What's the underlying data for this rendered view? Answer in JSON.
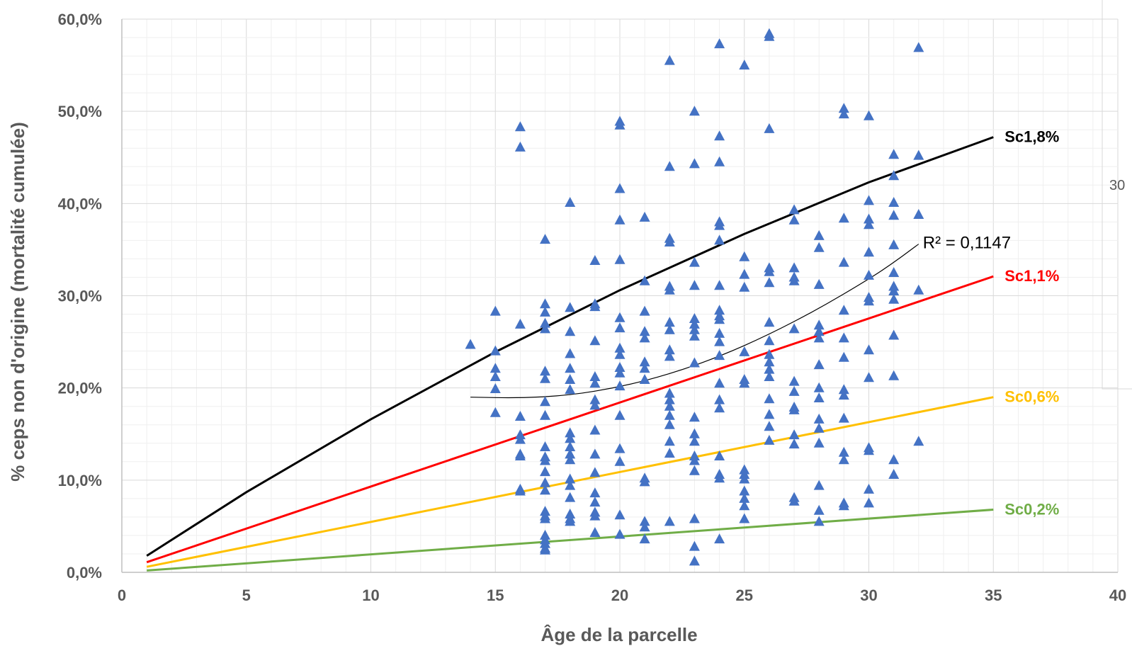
{
  "chart_data": {
    "type": "scatter",
    "xlabel": "Âge de la parcelle",
    "ylabel": "% ceps non d'origine (mortalité cumulée)",
    "xlim": [
      0,
      40
    ],
    "ylim": [
      0,
      60
    ],
    "x_ticks": [
      "0",
      "5",
      "10",
      "15",
      "20",
      "25",
      "30",
      "35",
      "40"
    ],
    "y_ticks": [
      "0,0%",
      "10,0%",
      "20,0%",
      "30,0%",
      "40,0%",
      "50,0%",
      "60,0%"
    ],
    "grid": true,
    "colors": {
      "points": "#4472C4",
      "Sc1,8%": "#000000",
      "Sc1,1%": "#FF0000",
      "Sc0,6%": "#FFC000",
      "Sc0,2%": "#70AD47",
      "trend": "#000000"
    },
    "points": [
      [
        14,
        24.7
      ],
      [
        15,
        28.3
      ],
      [
        15,
        24
      ],
      [
        15,
        22.1
      ],
      [
        15,
        21.2
      ],
      [
        15,
        19.9
      ],
      [
        15,
        17.3
      ],
      [
        16,
        48.3
      ],
      [
        16,
        46.1
      ],
      [
        16,
        26.9
      ],
      [
        16,
        16.9
      ],
      [
        16,
        14.9
      ],
      [
        16,
        14.4
      ],
      [
        16,
        12.8
      ],
      [
        16,
        12.6
      ],
      [
        16,
        9.0
      ],
      [
        16,
        8.8
      ],
      [
        17,
        36.1
      ],
      [
        17,
        29.1
      ],
      [
        17,
        28.2
      ],
      [
        17,
        27
      ],
      [
        17,
        26.4
      ],
      [
        17,
        21.8
      ],
      [
        17,
        21
      ],
      [
        17,
        18.5
      ],
      [
        17,
        17
      ],
      [
        17,
        13.6
      ],
      [
        17,
        12.5
      ],
      [
        17,
        12.1
      ],
      [
        17,
        10.9
      ],
      [
        17,
        9.7
      ],
      [
        17,
        8.9
      ],
      [
        17,
        6.6
      ],
      [
        17,
        6.1
      ],
      [
        17,
        5.8
      ],
      [
        17,
        4
      ],
      [
        17,
        3.5
      ],
      [
        17,
        3.1
      ],
      [
        17,
        2.6
      ],
      [
        17,
        2.4
      ],
      [
        18,
        40.1
      ],
      [
        18,
        28.7
      ],
      [
        18,
        26.1
      ],
      [
        18,
        23.7
      ],
      [
        18,
        22.1
      ],
      [
        18,
        20.9
      ],
      [
        18,
        19.8
      ],
      [
        18,
        15.1
      ],
      [
        18,
        14.5
      ],
      [
        18,
        13.6
      ],
      [
        18,
        12.8
      ],
      [
        18,
        12.2
      ],
      [
        18,
        10.1
      ],
      [
        18,
        9.4
      ],
      [
        18,
        8.1
      ],
      [
        18,
        6.3
      ],
      [
        18,
        5.8
      ],
      [
        18,
        5.5
      ],
      [
        19,
        33.8
      ],
      [
        19,
        29.1
      ],
      [
        19,
        28.8
      ],
      [
        19,
        25.1
      ],
      [
        19,
        21.2
      ],
      [
        19,
        20.5
      ],
      [
        19,
        18.7
      ],
      [
        19,
        18.1
      ],
      [
        19,
        15.4
      ],
      [
        19,
        12.8
      ],
      [
        19,
        10.8
      ],
      [
        19,
        8.6
      ],
      [
        19,
        7.6
      ],
      [
        19,
        6.5
      ],
      [
        19,
        6.1
      ],
      [
        19,
        4.3
      ],
      [
        20,
        48.9
      ],
      [
        20,
        48.5
      ],
      [
        20,
        41.6
      ],
      [
        20,
        38.2
      ],
      [
        20,
        33.9
      ],
      [
        20,
        27.6
      ],
      [
        20,
        26.5
      ],
      [
        20,
        24.3
      ],
      [
        20,
        23.6
      ],
      [
        20,
        22.2
      ],
      [
        20,
        21.6
      ],
      [
        20,
        20.2
      ],
      [
        20,
        17
      ],
      [
        20,
        13.4
      ],
      [
        20,
        12
      ],
      [
        20,
        6.2
      ],
      [
        20,
        4.1
      ],
      [
        21,
        38.5
      ],
      [
        21,
        31.6
      ],
      [
        21,
        28.3
      ],
      [
        21,
        26.1
      ],
      [
        21,
        25.4
      ],
      [
        21,
        22.8
      ],
      [
        21,
        22.1
      ],
      [
        21,
        20.9
      ],
      [
        21,
        10.2
      ],
      [
        21,
        9.8
      ],
      [
        21,
        5.5
      ],
      [
        21,
        4.9
      ],
      [
        21,
        3.6
      ],
      [
        22,
        55.5
      ],
      [
        22,
        44
      ],
      [
        22,
        36.2
      ],
      [
        22,
        35.8
      ],
      [
        22,
        31
      ],
      [
        22,
        30.6
      ],
      [
        22,
        27.1
      ],
      [
        22,
        26.3
      ],
      [
        22,
        24.1
      ],
      [
        22,
        23.4
      ],
      [
        22,
        19.4
      ],
      [
        22,
        18.7
      ],
      [
        22,
        18
      ],
      [
        22,
        17
      ],
      [
        22,
        16
      ],
      [
        22,
        14.2
      ],
      [
        22,
        12.9
      ],
      [
        22,
        5.5
      ],
      [
        23,
        50
      ],
      [
        23,
        44.3
      ],
      [
        23,
        33.6
      ],
      [
        23,
        31.1
      ],
      [
        23,
        27.5
      ],
      [
        23,
        26.9
      ],
      [
        23,
        26.3
      ],
      [
        23,
        25.6
      ],
      [
        23,
        22.7
      ],
      [
        23,
        16.8
      ],
      [
        23,
        15
      ],
      [
        23,
        14.2
      ],
      [
        23,
        12.6
      ],
      [
        23,
        12.1
      ],
      [
        23,
        11
      ],
      [
        23,
        5.8
      ],
      [
        23,
        2.8
      ],
      [
        23,
        1.2
      ],
      [
        24,
        57.3
      ],
      [
        24,
        47.3
      ],
      [
        24,
        44.5
      ],
      [
        24,
        38
      ],
      [
        24,
        37.6
      ],
      [
        24,
        36
      ],
      [
        24,
        31.1
      ],
      [
        24,
        28.4
      ],
      [
        24,
        27.8
      ],
      [
        24,
        27.4
      ],
      [
        24,
        25.9
      ],
      [
        24,
        25
      ],
      [
        24,
        23.5
      ],
      [
        24,
        20.5
      ],
      [
        24,
        18.7
      ],
      [
        24,
        17.8
      ],
      [
        24,
        12.6
      ],
      [
        24,
        10.6
      ],
      [
        24,
        10.2
      ],
      [
        24,
        3.6
      ],
      [
        25,
        55
      ],
      [
        25,
        34.2
      ],
      [
        25,
        32.3
      ],
      [
        25,
        30.9
      ],
      [
        25,
        23.9
      ],
      [
        25,
        20.9
      ],
      [
        25,
        20.5
      ],
      [
        25,
        11.1
      ],
      [
        25,
        10.6
      ],
      [
        25,
        10.1
      ],
      [
        25,
        8.8
      ],
      [
        25,
        8
      ],
      [
        25,
        7.2
      ],
      [
        25,
        5.8
      ],
      [
        26,
        58.4
      ],
      [
        26,
        58.1
      ],
      [
        26,
        48.1
      ],
      [
        26,
        33
      ],
      [
        26,
        32.6
      ],
      [
        26,
        31.4
      ],
      [
        26,
        27.1
      ],
      [
        26,
        25.1
      ],
      [
        26,
        23.6
      ],
      [
        26,
        22.8
      ],
      [
        26,
        22
      ],
      [
        26,
        21.2
      ],
      [
        26,
        18.8
      ],
      [
        26,
        17.1
      ],
      [
        26,
        15.8
      ],
      [
        26,
        14.3
      ],
      [
        27,
        39.3
      ],
      [
        27,
        38.2
      ],
      [
        27,
        33
      ],
      [
        27,
        32
      ],
      [
        27,
        31.6
      ],
      [
        27,
        26.4
      ],
      [
        27,
        20.7
      ],
      [
        27,
        19.6
      ],
      [
        27,
        17.9
      ],
      [
        27,
        17.6
      ],
      [
        27,
        14.9
      ],
      [
        27,
        13.9
      ],
      [
        27,
        8.1
      ],
      [
        27,
        7.7
      ],
      [
        28,
        36.5
      ],
      [
        28,
        35.2
      ],
      [
        28,
        31.2
      ],
      [
        28,
        26.8
      ],
      [
        28,
        26.1
      ],
      [
        28,
        25.4
      ],
      [
        28,
        22.5
      ],
      [
        28,
        20
      ],
      [
        28,
        18.9
      ],
      [
        28,
        16.6
      ],
      [
        28,
        15.6
      ],
      [
        28,
        14
      ],
      [
        28,
        9.4
      ],
      [
        28,
        6.7
      ],
      [
        28,
        5.5
      ],
      [
        29,
        50.3
      ],
      [
        29,
        49.7
      ],
      [
        29,
        38.4
      ],
      [
        29,
        33.6
      ],
      [
        29,
        28.4
      ],
      [
        29,
        25.4
      ],
      [
        29,
        23.3
      ],
      [
        29,
        19.8
      ],
      [
        29,
        19.2
      ],
      [
        29,
        16.7
      ],
      [
        29,
        13
      ],
      [
        29,
        12.2
      ],
      [
        29,
        7.5
      ],
      [
        29,
        7.2
      ],
      [
        30,
        49.5
      ],
      [
        30,
        40.3
      ],
      [
        30,
        38.3
      ],
      [
        30,
        37.7
      ],
      [
        30,
        34.7
      ],
      [
        30,
        32.2
      ],
      [
        30,
        29.8
      ],
      [
        30,
        29.4
      ],
      [
        30,
        24.1
      ],
      [
        30,
        21.1
      ],
      [
        30,
        13.5
      ],
      [
        30,
        13.2
      ],
      [
        30,
        9
      ],
      [
        30,
        7.5
      ],
      [
        31,
        45.3
      ],
      [
        31,
        43
      ],
      [
        31,
        40.1
      ],
      [
        31,
        38.7
      ],
      [
        31,
        35.5
      ],
      [
        31,
        32.5
      ],
      [
        31,
        31
      ],
      [
        31,
        30.5
      ],
      [
        31,
        29.6
      ],
      [
        31,
        25.7
      ],
      [
        31,
        21.3
      ],
      [
        31,
        12.2
      ],
      [
        31,
        10.6
      ],
      [
        32,
        56.9
      ],
      [
        32,
        45.2
      ],
      [
        32,
        38.8
      ],
      [
        32,
        30.6
      ],
      [
        32,
        14.2
      ]
    ],
    "series": [
      {
        "name": "Sc1,8%",
        "x": [
          1,
          5,
          10,
          15,
          20,
          25,
          30,
          35
        ],
        "y": [
          1.8,
          8.7,
          16.6,
          23.9,
          30.6,
          36.7,
          42.3,
          47.2
        ]
      },
      {
        "name": "Sc1,1%",
        "x": [
          1,
          35
        ],
        "y": [
          1.1,
          32.1
        ]
      },
      {
        "name": "Sc0,6%",
        "x": [
          1,
          35
        ],
        "y": [
          0.6,
          19
        ]
      },
      {
        "name": "Sc0,2%",
        "x": [
          1,
          35
        ],
        "y": [
          0.2,
          6.8
        ]
      }
    ],
    "trendline": {
      "type": "polynomial",
      "x": [
        14,
        16,
        18,
        20,
        22,
        24,
        26,
        28,
        30,
        31,
        32
      ],
      "y": [
        19,
        18.9,
        19.2,
        20.1,
        21.5,
        23.4,
        25.8,
        28.6,
        31.8,
        33.6,
        35.6
      ],
      "label": "R² = 0,1147"
    },
    "side_panel_text": "30"
  }
}
